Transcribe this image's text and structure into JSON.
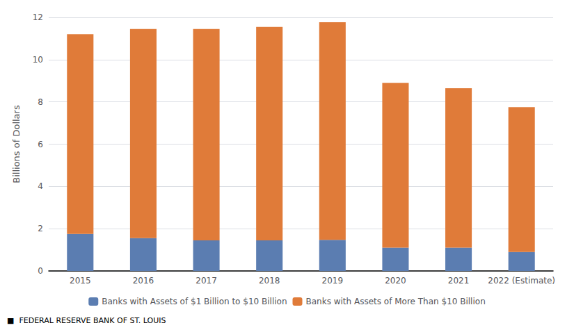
{
  "chart_data": {
    "type": "bar",
    "stacked": true,
    "categories": [
      "2015",
      "2016",
      "2017",
      "2018",
      "2019",
      "2020",
      "2021",
      "2022 (Estimate)"
    ],
    "series": [
      {
        "name": "Banks with Assets of $1 Billion to $10 Billion",
        "color": "#5b7db1",
        "values": [
          1.75,
          1.55,
          1.45,
          1.45,
          1.47,
          1.1,
          1.1,
          0.9
        ]
      },
      {
        "name": "Banks with Assets of More Than $10 Billion",
        "color": "#e07b39",
        "values": [
          9.45,
          9.9,
          10.0,
          10.1,
          10.3,
          7.8,
          7.55,
          6.85
        ]
      }
    ],
    "ylabel": "Billions of Dollars",
    "ylim": [
      0,
      12
    ],
    "yticks": [
      0,
      2,
      4,
      6,
      8,
      10,
      12
    ],
    "grid": true,
    "legend": "bottom",
    "annotations": [
      "■  FEDERAL RESERVE BANK OF ST. LOUIS"
    ]
  }
}
